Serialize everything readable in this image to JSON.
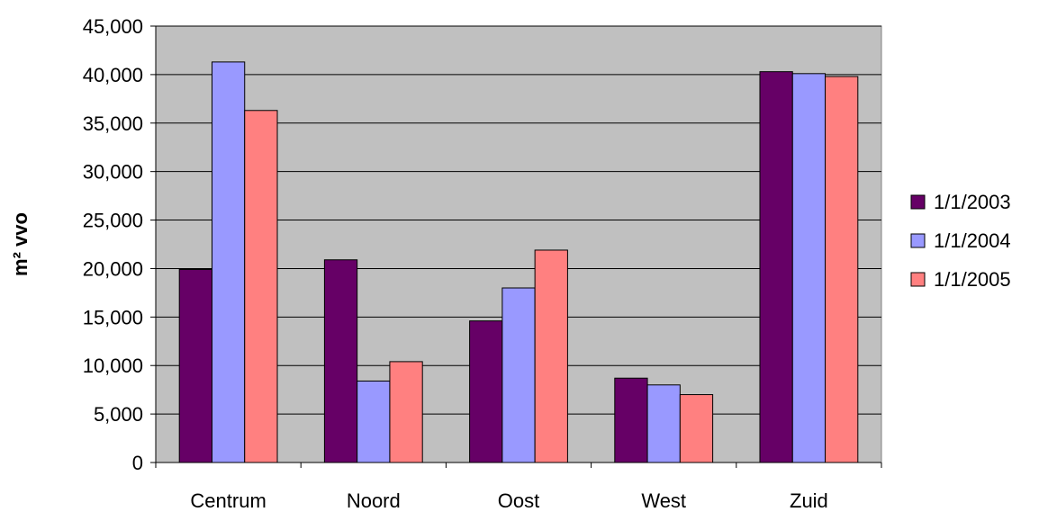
{
  "chart_data": {
    "type": "bar",
    "title": "",
    "xlabel": "",
    "ylabel": "m² vvo",
    "categories": [
      "Centrum",
      "Noord",
      "Oost",
      "West",
      "Zuid"
    ],
    "series": [
      {
        "name": "1/1/2003",
        "color": "#660066",
        "values": [
          19900,
          20900,
          14600,
          8700,
          40300
        ]
      },
      {
        "name": "1/1/2004",
        "color": "#9999ff",
        "values": [
          41300,
          8400,
          18000,
          8000,
          40100
        ]
      },
      {
        "name": "1/1/2005",
        "color": "#ff8080",
        "values": [
          36300,
          10400,
          21900,
          7000,
          39800
        ]
      }
    ],
    "ylim": [
      0,
      45000
    ],
    "yticks": [
      "0",
      "5,000",
      "10,000",
      "15,000",
      "20,000",
      "25,000",
      "30,000",
      "35,000",
      "40,000",
      "45,000"
    ],
    "grid": true,
    "plot_background": "#c0c0c0",
    "legend_position": "right"
  }
}
